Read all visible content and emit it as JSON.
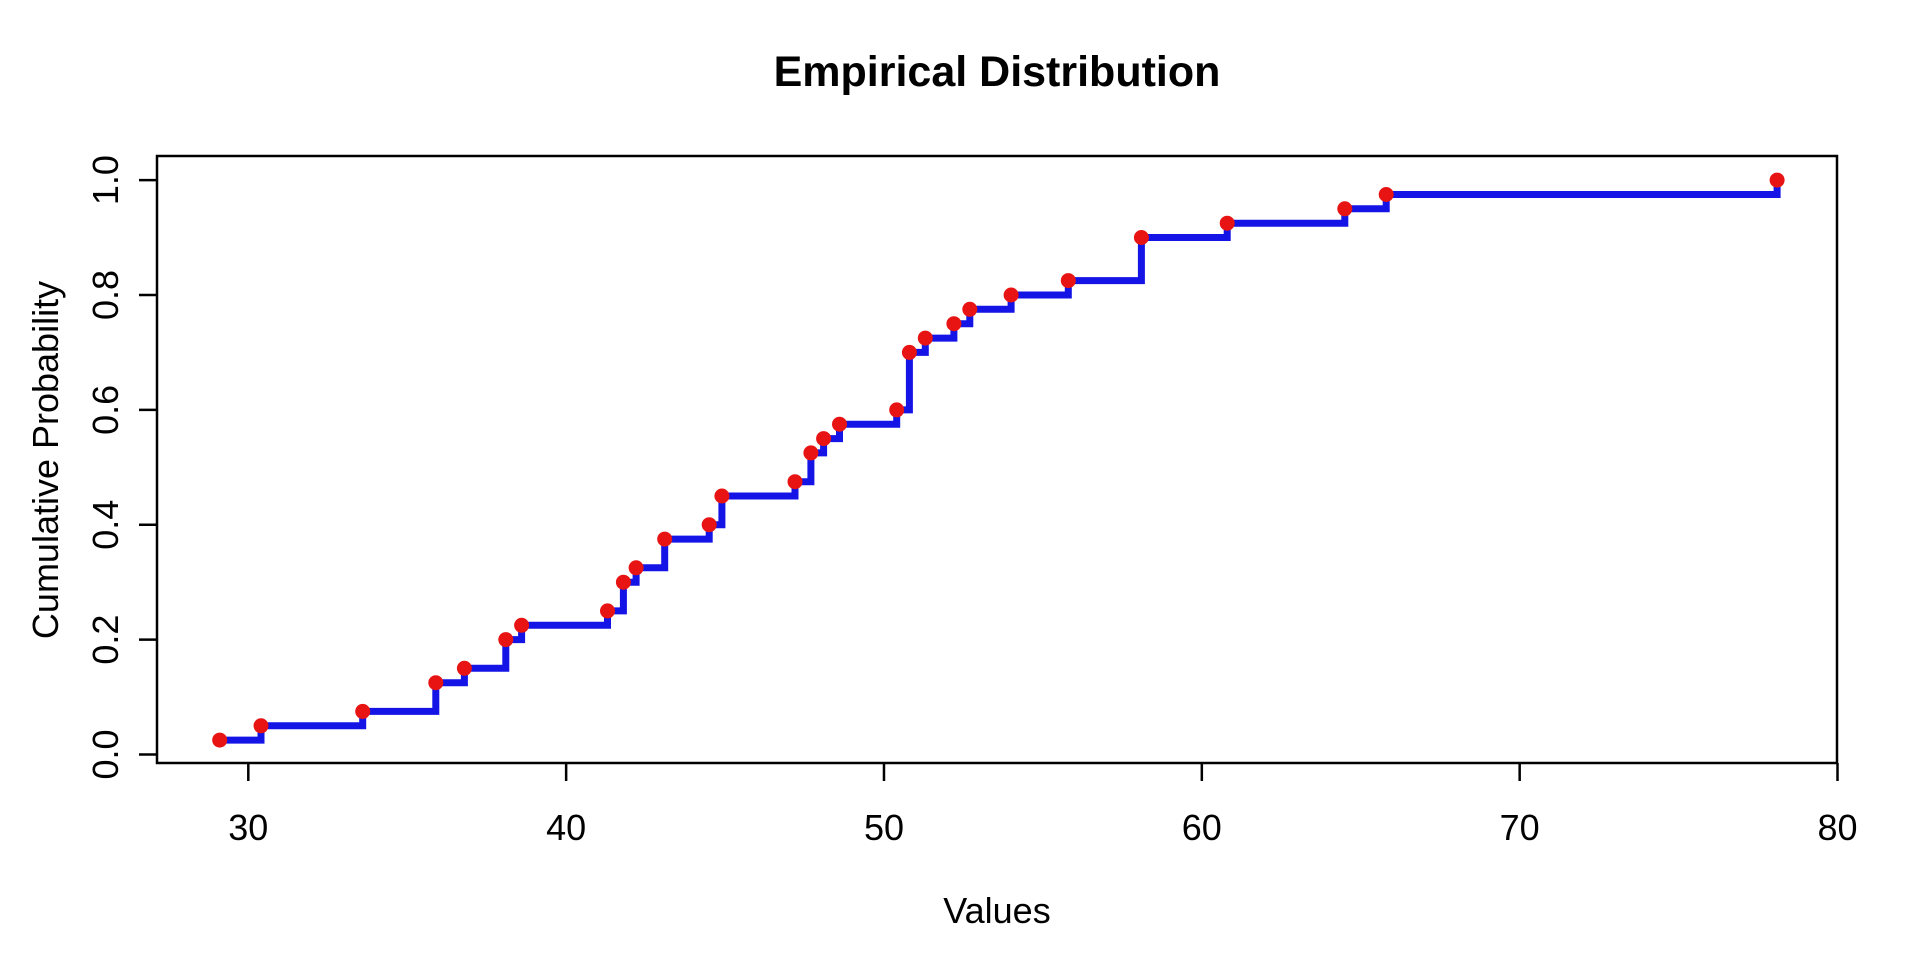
{
  "chart_data": {
    "type": "line",
    "subtype": "ecdf-step",
    "title": "Empirical Distribution",
    "xlabel": "Values",
    "ylabel": "Cumulative Probability",
    "x_ticks": [
      30,
      40,
      50,
      60,
      70,
      80
    ],
    "x_tick_labels": [
      "30",
      "40",
      "50",
      "60",
      "70",
      "80"
    ],
    "y_ticks": [
      0.0,
      0.2,
      0.4,
      0.6,
      0.8,
      1.0
    ],
    "y_tick_labels": [
      "0.0",
      "0.2",
      "0.4",
      "0.6",
      "0.8",
      "1.0"
    ],
    "xlim": [
      27.0,
      80.2
    ],
    "ylim": [
      -0.015,
      1.045
    ],
    "grid": false,
    "legend": false,
    "sample_size": 40,
    "step_increment": 0.025,
    "points": [
      {
        "x": 29.1,
        "p": 0.025
      },
      {
        "x": 30.4,
        "p": 0.05
      },
      {
        "x": 33.6,
        "p": 0.075
      },
      {
        "x": 35.9,
        "p": 0.125
      },
      {
        "x": 36.8,
        "p": 0.15
      },
      {
        "x": 38.1,
        "p": 0.2
      },
      {
        "x": 38.6,
        "p": 0.225
      },
      {
        "x": 41.3,
        "p": 0.25
      },
      {
        "x": 41.8,
        "p": 0.3
      },
      {
        "x": 42.2,
        "p": 0.325
      },
      {
        "x": 43.1,
        "p": 0.375
      },
      {
        "x": 44.5,
        "p": 0.4
      },
      {
        "x": 44.9,
        "p": 0.45
      },
      {
        "x": 47.2,
        "p": 0.475
      },
      {
        "x": 47.7,
        "p": 0.525
      },
      {
        "x": 48.1,
        "p": 0.55
      },
      {
        "x": 48.6,
        "p": 0.575
      },
      {
        "x": 50.4,
        "p": 0.6
      },
      {
        "x": 50.8,
        "p": 0.7
      },
      {
        "x": 51.3,
        "p": 0.725
      },
      {
        "x": 52.2,
        "p": 0.75
      },
      {
        "x": 52.7,
        "p": 0.775
      },
      {
        "x": 54.0,
        "p": 0.8
      },
      {
        "x": 55.8,
        "p": 0.825
      },
      {
        "x": 58.1,
        "p": 0.9
      },
      {
        "x": 60.8,
        "p": 0.925
      },
      {
        "x": 64.5,
        "p": 0.95
      },
      {
        "x": 65.8,
        "p": 0.975
      },
      {
        "x": 78.1,
        "p": 1.0
      }
    ],
    "colors": {
      "line": "#1414e6",
      "marker": "#e81414",
      "frame": "#000000",
      "text": "#000000",
      "background": "#ffffff"
    }
  }
}
